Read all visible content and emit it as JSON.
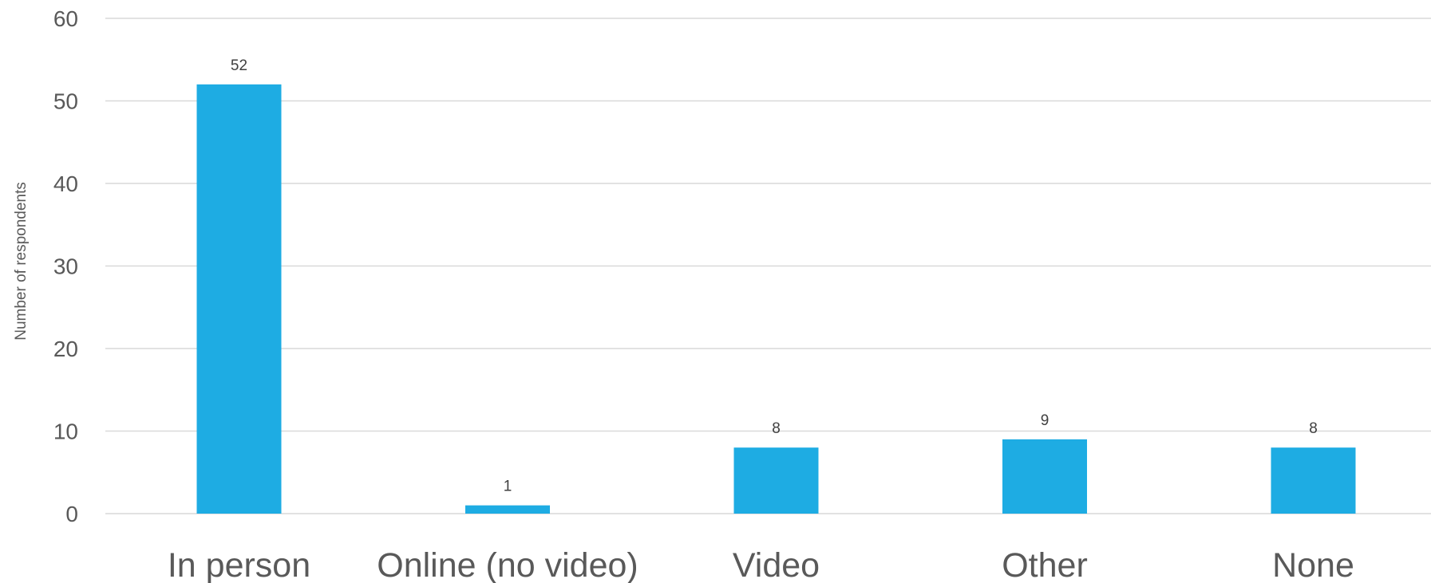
{
  "chart_data": {
    "type": "bar",
    "title": "",
    "xlabel": "",
    "ylabel": "Number of respondents",
    "categories": [
      "In person",
      "Online (no video)",
      "Video",
      "Other",
      "None"
    ],
    "values": [
      52,
      1,
      8,
      9,
      8
    ],
    "data_labels": [
      "52",
      "1",
      "8",
      "9",
      "8"
    ],
    "ylim": [
      0,
      60
    ],
    "y_ticks": [
      0,
      10,
      20,
      30,
      40,
      50,
      60
    ],
    "y_tick_labels": [
      "0",
      "10",
      "20",
      "30",
      "40",
      "50",
      "60"
    ],
    "grid": true,
    "legend": "none",
    "bar_color": "#1eace3"
  }
}
